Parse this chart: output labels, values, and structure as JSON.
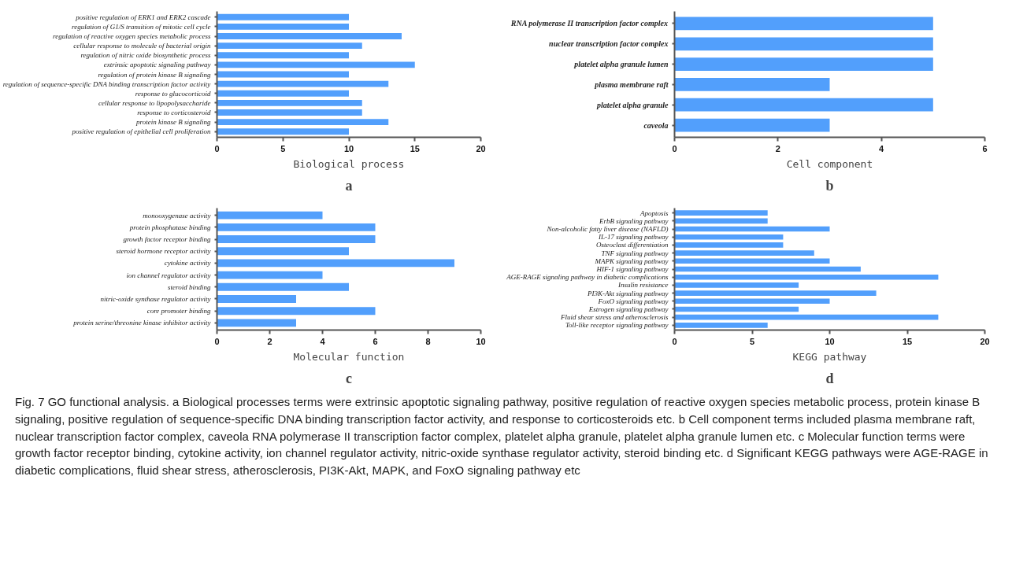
{
  "chart_data": [
    {
      "type": "bar",
      "orientation": "horizontal",
      "xlabel": "Biological process",
      "grid": false,
      "color": "#529ffc",
      "categories": [
        "positive regulation of ERK1 and ERK2 cascade",
        "regulation of G1/S transition of mitotic cell cycle",
        "regulation of reactive oxygen species metabolic process",
        "cellular response to molecule of bacterial origin",
        "regulation of nitric oxide biosynthetic process",
        "extrinsic apoptotic signaling pathway",
        "regulation of protein kinase B signaling",
        "regulation of sequence-specific DNA binding transcription factor activity",
        "response to glucocorticoid",
        "cellular response to lipopolysaccharide",
        "response to corticosteroid",
        "protein kinase B signaling",
        "positive regulation of epithelial cell proliferation"
      ],
      "values": [
        10,
        10,
        14,
        11,
        10,
        15,
        10,
        13,
        10,
        11,
        11,
        13,
        10
      ],
      "xlim": [
        0,
        20
      ],
      "xticks": [
        0,
        5,
        10,
        15,
        20
      ],
      "annotations": [
        "a"
      ]
    },
    {
      "type": "bar",
      "orientation": "horizontal",
      "xlabel": "Cell component",
      "grid": false,
      "color": "#529ffc",
      "categories": [
        "RNA polymerase II transcription factor complex",
        "nuclear transcription factor complex",
        "platelet alpha granule lumen",
        "plasma membrane raft",
        "platelet alpha granule",
        "caveola"
      ],
      "values": [
        5,
        5,
        5,
        3,
        5,
        3
      ],
      "xlim": [
        0,
        6
      ],
      "xticks": [
        0,
        2,
        4,
        6
      ],
      "annotations": [
        "b"
      ]
    },
    {
      "type": "bar",
      "orientation": "horizontal",
      "xlabel": "Molecular function",
      "grid": false,
      "color": "#529ffc",
      "categories": [
        "monooxygenase activity",
        "protein phosphatase binding",
        "growth factor receptor binding",
        "steroid hormone receptor activity",
        "cytokine activity",
        "ion channel regulator activity",
        "steroid binding",
        "nitric-oxide synthase regulator activity",
        "core promoter binding",
        "protein serine/threonine kinase inhibitor activity"
      ],
      "values": [
        4,
        6,
        6,
        5,
        9,
        4,
        5,
        3,
        6,
        3
      ],
      "xlim": [
        0,
        10
      ],
      "xticks": [
        0,
        2,
        4,
        6,
        8,
        10
      ],
      "annotations": [
        "c"
      ]
    },
    {
      "type": "bar",
      "orientation": "horizontal",
      "xlabel": "KEGG pathway",
      "grid": false,
      "color": "#529ffc",
      "categories": [
        "Apoptosis",
        "ErbB signaling pathway",
        "Non-alcoholic fatty liver disease (NAFLD)",
        "IL-17 signaling pathway",
        "Osteoclast differentiation",
        "TNF signaling pathway",
        "MAPK signaling pathway",
        "HIF-1 signaling pathway",
        "AGE-RAGE signaling pathway in diabetic complications",
        "Insulin resistance",
        "PI3K-Akt signaling pathway",
        "FoxO signaling pathway",
        "Estrogen signaling pathway",
        "Fluid shear stress and atherosclerosis",
        "Toll-like receptor signaling pathway"
      ],
      "values": [
        6,
        6,
        10,
        7,
        7,
        9,
        10,
        12,
        17,
        8,
        13,
        10,
        8,
        17,
        6
      ],
      "xlim": [
        0,
        20
      ],
      "xticks": [
        0,
        5,
        10,
        15,
        20
      ],
      "annotations": [
        "d",
        "Fig. 7 GO functional analysis. a Biological processes terms were extrinsic apoptotic signaling pathway, positive regulation of reactive oxygen species metabolic process, protein kinase B signaling, positive regulation of sequence-specific DNA binding transcription factor activity, and response to corticosteroids etc. b Cell component terms included plasma membrane raft, nuclear transcription factor complex, caveola RNA polymerase II transcription factor complex, platelet alpha granule, platelet alpha granule lumen etc. c Molecular function terms were growth factor receptor binding, cytokine activity, ion channel regulator activity, nitric-oxide synthase regulator activity, steroid binding etc. d Significant KEGG pathways were AGE-RAGE in diabetic complications, fluid shear stress, atherosclerosis, PI3K-Akt, MAPK, and FoxO signaling pathway etc"
      ]
    }
  ]
}
